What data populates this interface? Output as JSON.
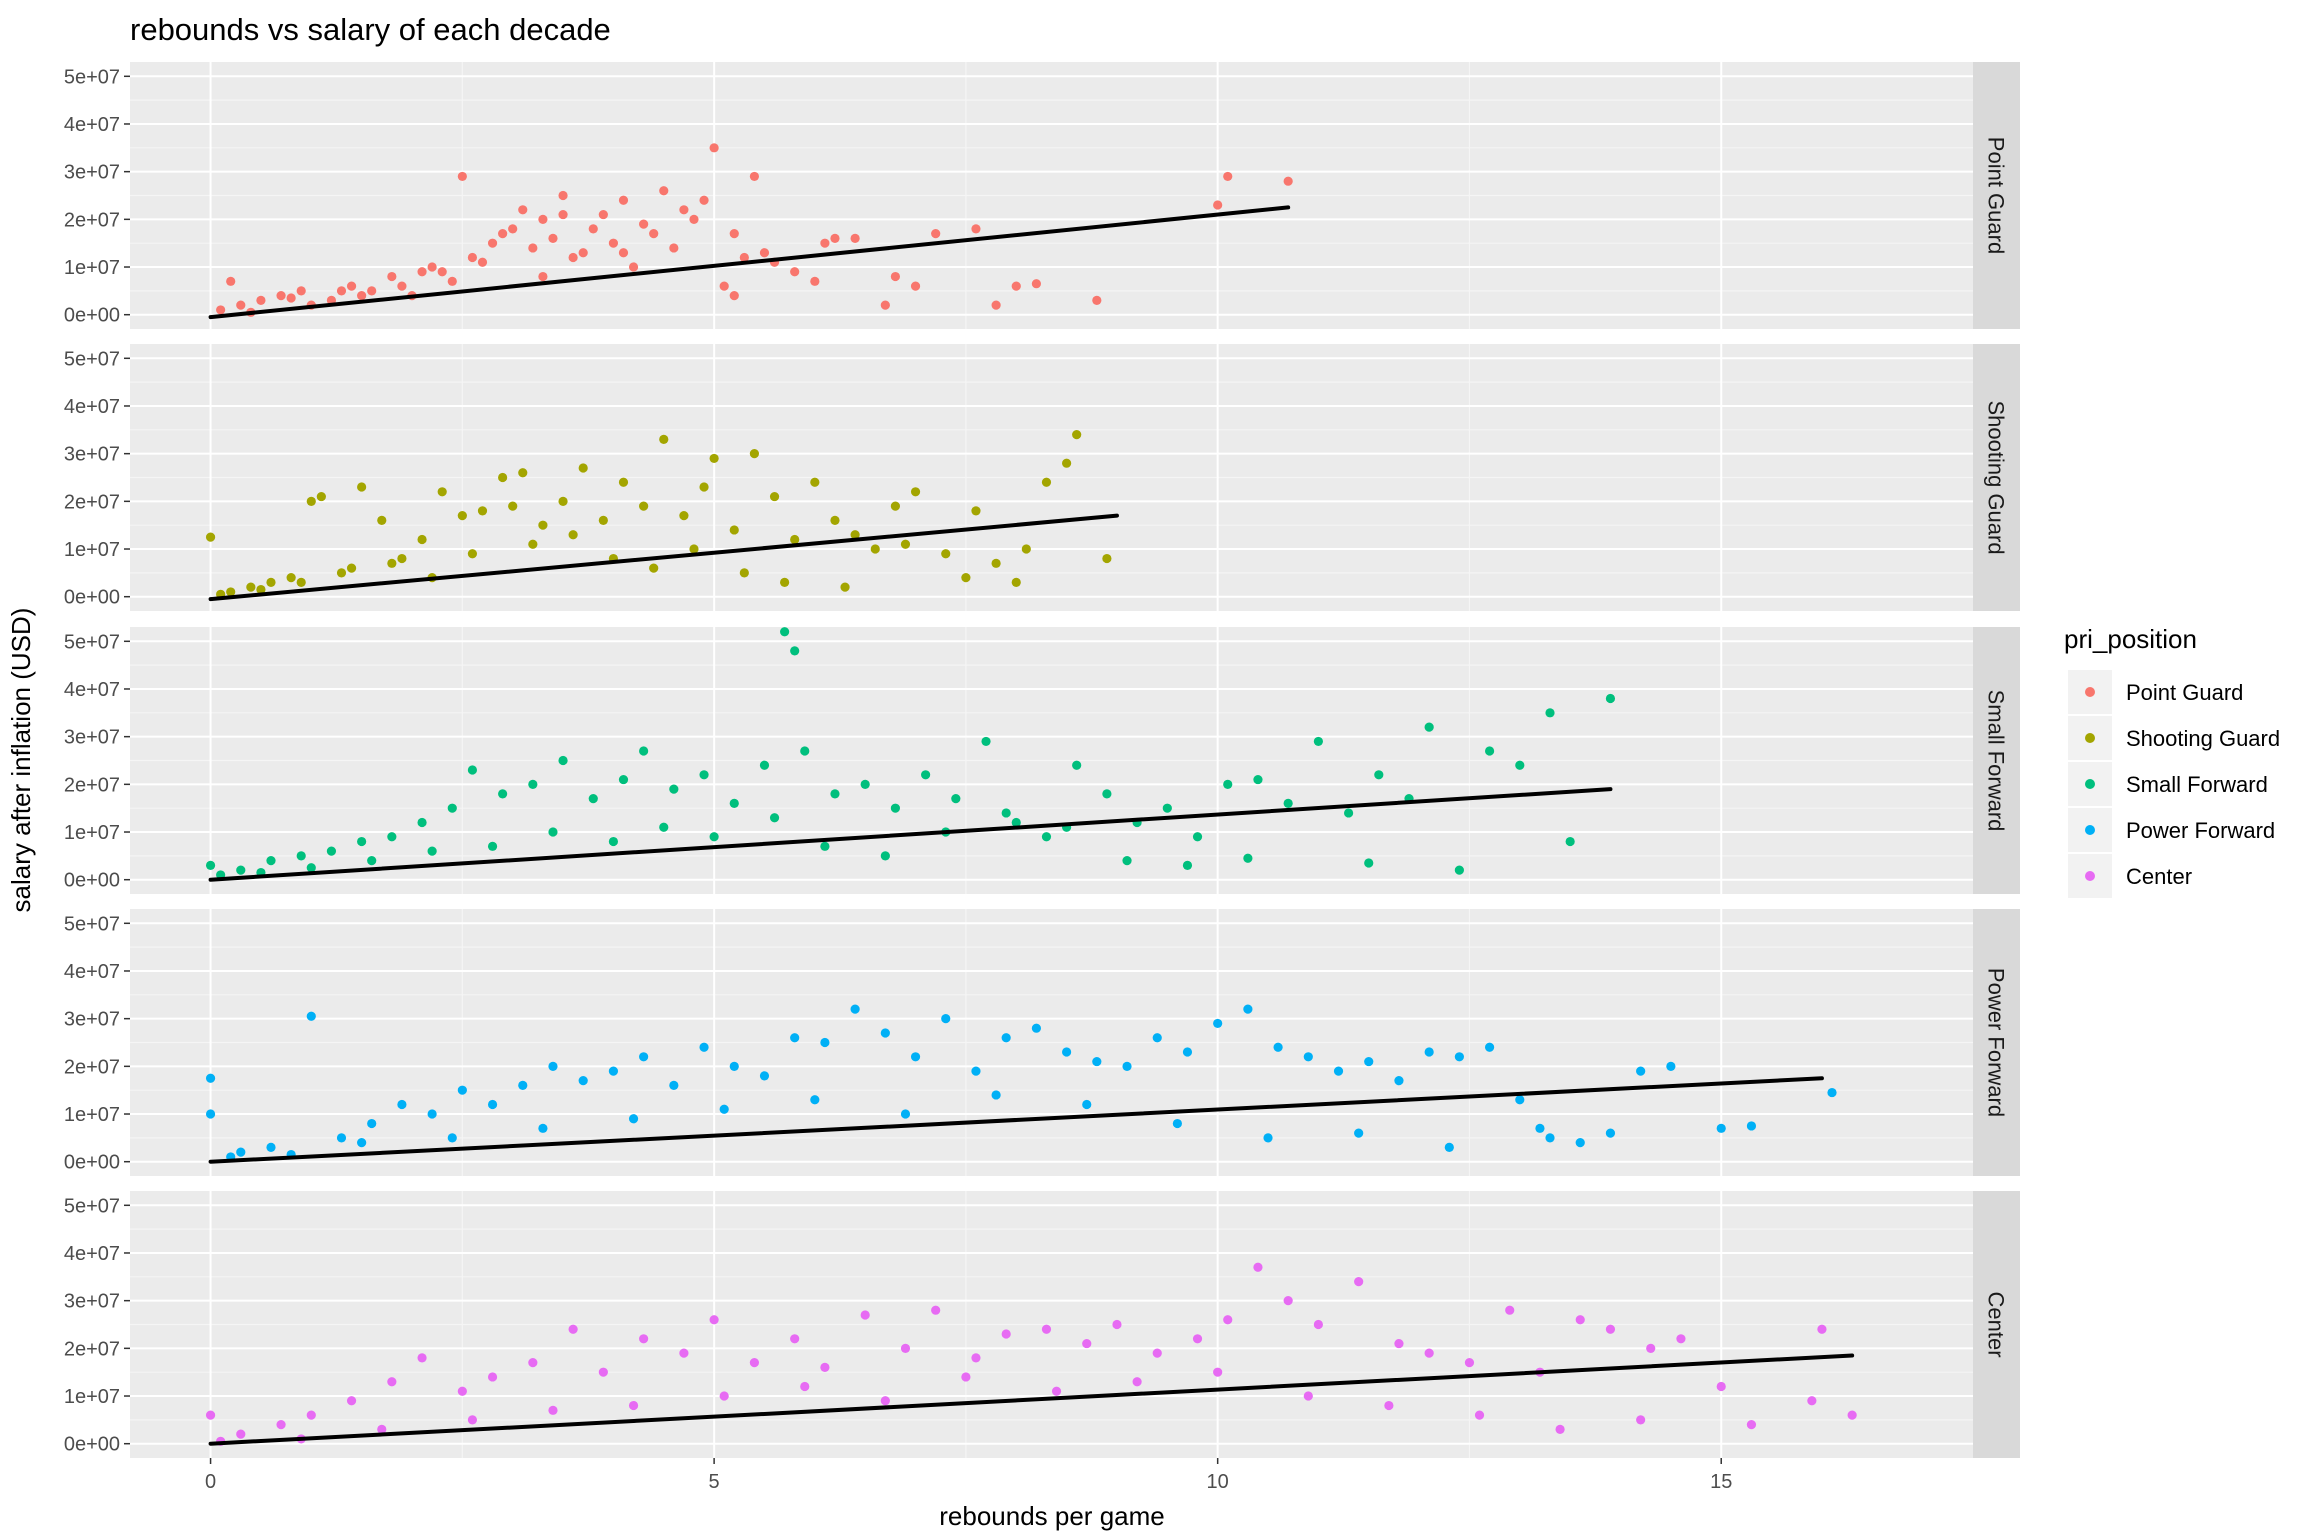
{
  "chart_data": {
    "type": "scatter",
    "title": "rebounds vs salary of each decade",
    "xlabel": "rebounds per game",
    "ylabel": "salary after inflation (USD)",
    "xlim": [
      -0.8,
      17.5
    ],
    "ylim": [
      -3000000,
      53000000
    ],
    "x_ticks": [
      0,
      5,
      10,
      15
    ],
    "y_ticks": [
      0,
      10000000,
      20000000,
      30000000,
      40000000,
      50000000
    ],
    "y_tick_labels": [
      "0e+00",
      "1e+07",
      "2e+07",
      "3e+07",
      "4e+07",
      "5e+07"
    ],
    "grid": true,
    "legend": {
      "title": "pri_position",
      "placement": "right",
      "entries": [
        "Point Guard",
        "Shooting Guard",
        "Small Forward",
        "Power Forward",
        "Center"
      ]
    },
    "facets": [
      {
        "name": "Point Guard",
        "color": "#F8766D",
        "fit_line": {
          "x": [
            0,
            10.7
          ],
          "y": [
            -500000,
            22500000
          ]
        },
        "points": {
          "x": [
            0.1,
            0.3,
            0.5,
            0.7,
            0.9,
            1.2,
            1.4,
            1.6,
            1.8,
            2.0,
            2.2,
            2.4,
            2.5,
            2.6,
            2.8,
            3.0,
            3.1,
            3.2,
            3.3,
            3.4,
            3.5,
            3.6,
            3.8,
            3.9,
            4.0,
            4.1,
            4.3,
            4.5,
            4.6,
            4.8,
            5.0,
            5.2,
            5.4,
            5.6,
            5.8,
            6.1,
            6.4,
            6.8,
            7.2,
            7.6,
            8.0,
            8.2,
            8.8,
            10.0,
            10.1,
            10.7,
            0.2,
            1.0,
            1.5,
            2.1,
            2.7,
            3.3,
            3.7,
            4.2,
            4.4,
            4.7,
            5.1,
            5.3,
            5.5,
            6.0,
            6.7,
            7.8,
            0.4,
            0.8,
            1.3,
            1.9,
            2.3,
            2.9,
            3.5,
            4.1,
            4.9,
            5.2,
            6.2,
            7.0
          ],
          "y": [
            1000000,
            2000000,
            3000000,
            4000000,
            5000000,
            3000000,
            6000000,
            5000000,
            8000000,
            4000000,
            10000000,
            7000000,
            29000000,
            12000000,
            15000000,
            18000000,
            22000000,
            14000000,
            20000000,
            16000000,
            25000000,
            12000000,
            18000000,
            21000000,
            15000000,
            24000000,
            19000000,
            26000000,
            14000000,
            20000000,
            35000000,
            17000000,
            29000000,
            11000000,
            9000000,
            15000000,
            16000000,
            8000000,
            17000000,
            18000000,
            6000000,
            6500000,
            3000000,
            23000000,
            29000000,
            28000000,
            7000000,
            2000000,
            4000000,
            9000000,
            11000000,
            8000000,
            13000000,
            10000000,
            17000000,
            22000000,
            6000000,
            12000000,
            13000000,
            7000000,
            2000000,
            2000000,
            500000,
            3500000,
            5000000,
            6000000,
            9000000,
            17000000,
            21000000,
            13000000,
            24000000,
            4000000,
            16000000,
            6000000
          ]
        }
      },
      {
        "name": "Shooting Guard",
        "color": "#A3A500",
        "fit_line": {
          "x": [
            0,
            9.0
          ],
          "y": [
            -500000,
            17000000
          ]
        },
        "points": {
          "x": [
            0.0,
            0.2,
            0.4,
            0.6,
            0.8,
            1.0,
            1.1,
            1.3,
            1.5,
            1.7,
            1.9,
            2.1,
            2.3,
            2.5,
            2.7,
            2.9,
            3.0,
            3.1,
            3.3,
            3.5,
            3.7,
            3.9,
            4.1,
            4.3,
            4.5,
            4.7,
            4.9,
            5.0,
            5.2,
            5.4,
            5.6,
            5.8,
            6.0,
            6.2,
            6.4,
            6.6,
            6.8,
            7.0,
            7.3,
            7.6,
            7.8,
            8.1,
            8.3,
            8.5,
            8.6,
            8.9,
            0.1,
            0.5,
            0.9,
            1.4,
            1.8,
            2.2,
            2.6,
            3.2,
            3.6,
            4.0,
            4.4,
            4.8,
            5.3,
            5.7,
            6.3,
            6.9,
            7.5,
            8.0
          ],
          "y": [
            12500000,
            1000000,
            2000000,
            3000000,
            4000000,
            20000000,
            21000000,
            5000000,
            23000000,
            16000000,
            8000000,
            12000000,
            22000000,
            17000000,
            18000000,
            25000000,
            19000000,
            26000000,
            15000000,
            20000000,
            27000000,
            16000000,
            24000000,
            19000000,
            33000000,
            17000000,
            23000000,
            29000000,
            14000000,
            30000000,
            21000000,
            12000000,
            24000000,
            16000000,
            13000000,
            10000000,
            19000000,
            22000000,
            9000000,
            18000000,
            7000000,
            10000000,
            24000000,
            28000000,
            34000000,
            8000000,
            500000,
            1500000,
            3000000,
            6000000,
            7000000,
            4000000,
            9000000,
            11000000,
            13000000,
            8000000,
            6000000,
            10000000,
            5000000,
            3000000,
            2000000,
            11000000,
            4000000,
            3000000
          ]
        }
      },
      {
        "name": "Small Forward",
        "color": "#00BF7D",
        "fit_line": {
          "x": [
            0,
            13.9
          ],
          "y": [
            0,
            19000000
          ]
        },
        "points": {
          "x": [
            0.0,
            0.3,
            0.6,
            0.9,
            1.2,
            1.5,
            1.8,
            2.1,
            2.4,
            2.6,
            2.9,
            3.2,
            3.5,
            3.8,
            4.1,
            4.3,
            4.6,
            4.9,
            5.2,
            5.5,
            5.7,
            5.8,
            5.9,
            6.2,
            6.5,
            6.8,
            7.1,
            7.4,
            7.7,
            8.0,
            8.3,
            8.6,
            8.9,
            9.2,
            9.5,
            9.8,
            10.1,
            10.4,
            10.7,
            11.0,
            11.3,
            11.6,
            11.9,
            12.1,
            12.4,
            12.7,
            13.0,
            13.3,
            13.5,
            13.9,
            0.1,
            0.5,
            1.0,
            1.6,
            2.2,
            2.8,
            3.4,
            4.0,
            4.5,
            5.0,
            5.6,
            6.1,
            6.7,
            7.3,
            7.9,
            8.5,
            9.1,
            9.7,
            10.3,
            11.5
          ],
          "y": [
            3000000,
            2000000,
            4000000,
            5000000,
            6000000,
            8000000,
            9000000,
            12000000,
            15000000,
            23000000,
            18000000,
            20000000,
            25000000,
            17000000,
            21000000,
            27000000,
            19000000,
            22000000,
            16000000,
            24000000,
            52000000,
            48000000,
            27000000,
            18000000,
            20000000,
            15000000,
            22000000,
            17000000,
            29000000,
            12000000,
            9000000,
            24000000,
            18000000,
            12000000,
            15000000,
            9000000,
            20000000,
            21000000,
            16000000,
            29000000,
            14000000,
            22000000,
            17000000,
            32000000,
            2000000,
            27000000,
            24000000,
            35000000,
            8000000,
            38000000,
            1000000,
            1500000,
            2500000,
            4000000,
            6000000,
            7000000,
            10000000,
            8000000,
            11000000,
            9000000,
            13000000,
            7000000,
            5000000,
            10000000,
            14000000,
            11000000,
            4000000,
            3000000,
            4500000,
            3500000
          ]
        }
      },
      {
        "name": "Power Forward",
        "color": "#00B0F6",
        "fit_line": {
          "x": [
            0,
            16.0
          ],
          "y": [
            0,
            17500000
          ]
        },
        "points": {
          "x": [
            0.0,
            0.0,
            0.3,
            0.6,
            1.0,
            1.3,
            1.6,
            1.9,
            2.2,
            2.5,
            2.8,
            3.1,
            3.4,
            3.7,
            4.0,
            4.3,
            4.6,
            4.9,
            5.2,
            5.5,
            5.8,
            6.1,
            6.4,
            6.7,
            7.0,
            7.3,
            7.6,
            7.9,
            8.2,
            8.5,
            8.8,
            9.1,
            9.4,
            9.7,
            10.0,
            10.3,
            10.6,
            10.9,
            11.2,
            11.5,
            11.8,
            12.1,
            12.4,
            12.7,
            13.0,
            13.3,
            13.6,
            13.9,
            14.2,
            14.5,
            15.0,
            15.3,
            16.1,
            0.2,
            0.8,
            1.5,
            2.4,
            3.3,
            4.2,
            5.1,
            6.0,
            6.9,
            7.8,
            8.7,
            9.6,
            10.5,
            11.4,
            12.3,
            13.2
          ],
          "y": [
            17500000,
            10000000,
            2000000,
            3000000,
            30500000,
            5000000,
            8000000,
            12000000,
            10000000,
            15000000,
            12000000,
            16000000,
            20000000,
            17000000,
            19000000,
            22000000,
            16000000,
            24000000,
            20000000,
            18000000,
            26000000,
            25000000,
            32000000,
            27000000,
            22000000,
            30000000,
            19000000,
            26000000,
            28000000,
            23000000,
            21000000,
            20000000,
            26000000,
            23000000,
            29000000,
            32000000,
            24000000,
            22000000,
            19000000,
            21000000,
            17000000,
            23000000,
            22000000,
            24000000,
            13000000,
            5000000,
            4000000,
            6000000,
            19000000,
            20000000,
            7000000,
            7500000,
            14500000,
            1000000,
            1500000,
            4000000,
            5000000,
            7000000,
            9000000,
            11000000,
            13000000,
            10000000,
            14000000,
            12000000,
            8000000,
            5000000,
            6000000,
            3000000,
            7000000
          ]
        }
      },
      {
        "name": "Center",
        "color": "#E76BF3",
        "fit_line": {
          "x": [
            0,
            16.3
          ],
          "y": [
            0,
            18500000
          ]
        },
        "points": {
          "x": [
            0.0,
            0.3,
            0.7,
            1.0,
            1.4,
            1.8,
            2.1,
            2.5,
            2.8,
            3.2,
            3.6,
            3.9,
            4.3,
            4.7,
            5.0,
            5.4,
            5.8,
            6.1,
            6.5,
            6.9,
            7.2,
            7.6,
            7.9,
            8.3,
            8.7,
            9.0,
            9.4,
            9.8,
            10.1,
            10.4,
            10.7,
            11.0,
            11.4,
            11.8,
            12.1,
            12.5,
            12.9,
            13.2,
            13.6,
            13.9,
            14.3,
            14.6,
            15.0,
            15.3,
            15.9,
            16.0,
            16.3,
            0.1,
            0.9,
            1.7,
            2.6,
            3.4,
            4.2,
            5.1,
            5.9,
            6.7,
            7.5,
            8.4,
            9.2,
            10.0,
            10.9,
            11.7,
            12.6,
            13.4,
            14.2
          ],
          "y": [
            6000000,
            2000000,
            4000000,
            6000000,
            9000000,
            13000000,
            18000000,
            11000000,
            14000000,
            17000000,
            24000000,
            15000000,
            22000000,
            19000000,
            26000000,
            17000000,
            22000000,
            16000000,
            27000000,
            20000000,
            28000000,
            18000000,
            23000000,
            24000000,
            21000000,
            25000000,
            19000000,
            22000000,
            26000000,
            37000000,
            30000000,
            25000000,
            34000000,
            21000000,
            19000000,
            17000000,
            28000000,
            15000000,
            26000000,
            24000000,
            20000000,
            22000000,
            12000000,
            4000000,
            9000000,
            24000000,
            6000000,
            500000,
            1000000,
            3000000,
            5000000,
            7000000,
            8000000,
            10000000,
            12000000,
            9000000,
            14000000,
            11000000,
            13000000,
            15000000,
            10000000,
            8000000,
            6000000,
            3000000,
            5000000
          ]
        }
      }
    ]
  }
}
